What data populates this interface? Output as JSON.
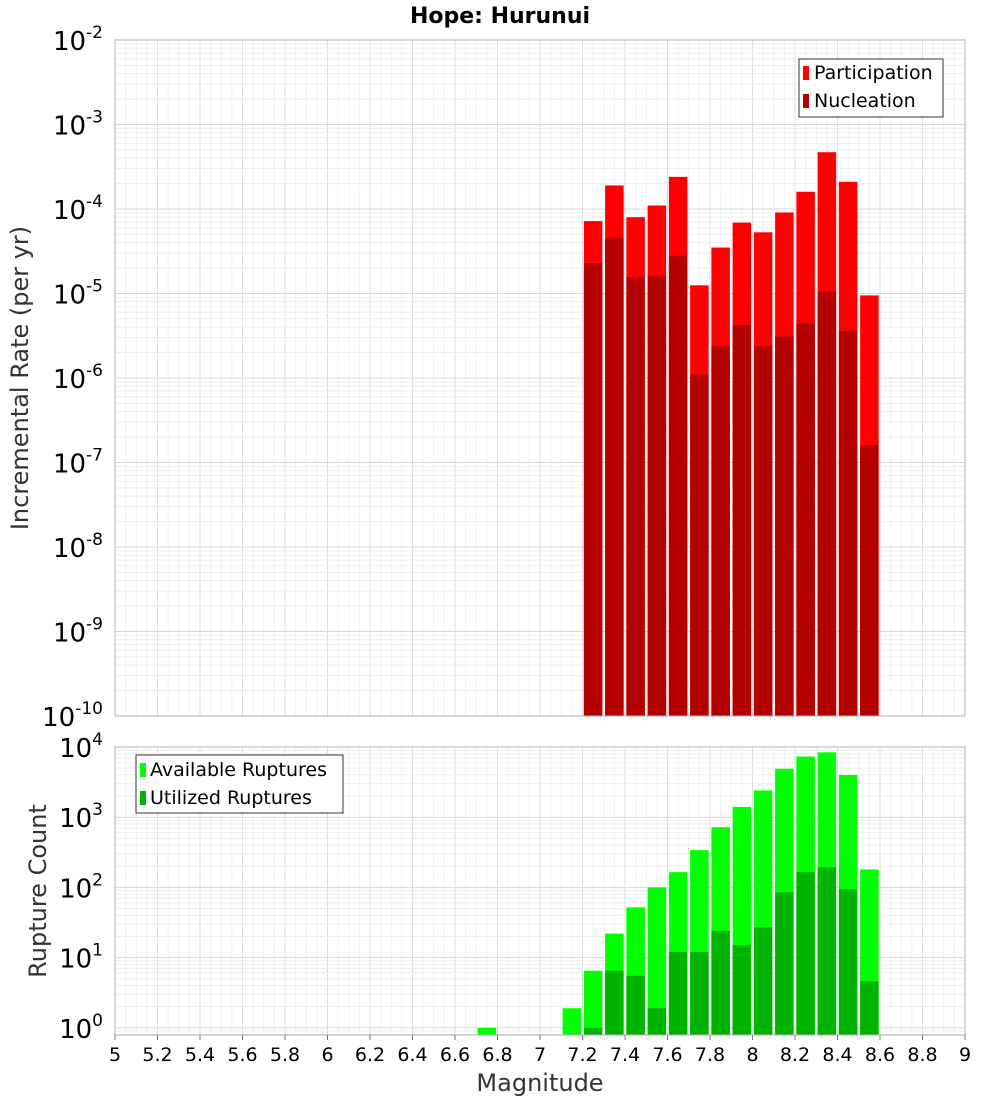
{
  "title": "Hope: Hurunui",
  "colors": {
    "participation": "#ff0000",
    "nucleation": "#b30000",
    "available": "#00ff00",
    "utilized": "#00b300",
    "grid": "#e6e6e6",
    "frame": "#b0b0b0"
  },
  "chart_data": [
    {
      "type": "bar",
      "panel": "top",
      "ylabel": "Incremental Rate (per yr)",
      "yscale": "log",
      "ylim": [
        1e-10,
        0.01
      ],
      "xlim": [
        5,
        9
      ],
      "y_tick_exponents": [
        "-2",
        "-3",
        "-4",
        "-5",
        "-6",
        "-7",
        "-8",
        "-9",
        "-10"
      ],
      "y_tick_base": "10",
      "legend": {
        "position": "top-right",
        "entries": [
          "Participation",
          "Nucleation"
        ]
      },
      "x": [
        7.25,
        7.35,
        7.45,
        7.55,
        7.65,
        7.75,
        7.85,
        7.95,
        8.05,
        8.15,
        8.25,
        8.35,
        8.45,
        8.55
      ],
      "series": [
        {
          "name": "Participation",
          "values": [
            7.2e-05,
            0.00019,
            8e-05,
            0.00011,
            0.00024,
            1.25e-05,
            3.5e-05,
            6.9e-05,
            5.3e-05,
            9.1e-05,
            0.00016,
            0.00047,
            0.00021,
            9.5e-06
          ]
        },
        {
          "name": "Nucleation",
          "values": [
            2.3e-05,
            4.5e-05,
            1.55e-05,
            1.6e-05,
            2.8e-05,
            1.1e-06,
            2.4e-06,
            4.2e-06,
            2.4e-06,
            3.1e-06,
            4.4e-06,
            1.05e-05,
            3.6e-06,
            1.6e-07
          ]
        }
      ]
    },
    {
      "type": "bar",
      "panel": "bottom",
      "xlabel": "Magnitude",
      "ylabel": "Rupture Count",
      "yscale": "log",
      "ylim": [
        0.79,
        10000
      ],
      "xlim": [
        5,
        9
      ],
      "x_ticks": [
        "5",
        "5.2",
        "5.4",
        "5.6",
        "5.8",
        "6",
        "6.2",
        "6.4",
        "6.6",
        "6.8",
        "7",
        "7.2",
        "7.4",
        "7.6",
        "7.8",
        "8",
        "8.2",
        "8.4",
        "8.6",
        "8.8",
        "9"
      ],
      "y_tick_exponents": [
        "4",
        "3",
        "2",
        "1",
        "0"
      ],
      "y_tick_base": "10",
      "legend": {
        "position": "top-left",
        "entries": [
          "Available Ruptures",
          "Utilized Ruptures"
        ]
      },
      "series": [
        {
          "name": "Available Ruptures",
          "x": [
            6.75,
            7.15,
            7.25,
            7.35,
            7.45,
            7.55,
            7.65,
            7.75,
            7.85,
            7.95,
            8.05,
            8.15,
            8.25,
            8.35,
            8.45,
            8.55
          ],
          "values": [
            1,
            1.9,
            6.5,
            22,
            52,
            100,
            165,
            340,
            720,
            1400,
            2400,
            4900,
            7300,
            8400,
            4000,
            180
          ]
        },
        {
          "name": "Utilized Ruptures",
          "x": [
            7.25,
            7.35,
            7.45,
            7.55,
            7.65,
            7.75,
            7.85,
            7.95,
            8.05,
            8.15,
            8.25,
            8.35,
            8.45,
            8.55
          ],
          "values": [
            1,
            6.5,
            5.5,
            1.9,
            12,
            12,
            24,
            15,
            27,
            85,
            165,
            195,
            95,
            4.6
          ]
        }
      ]
    }
  ]
}
